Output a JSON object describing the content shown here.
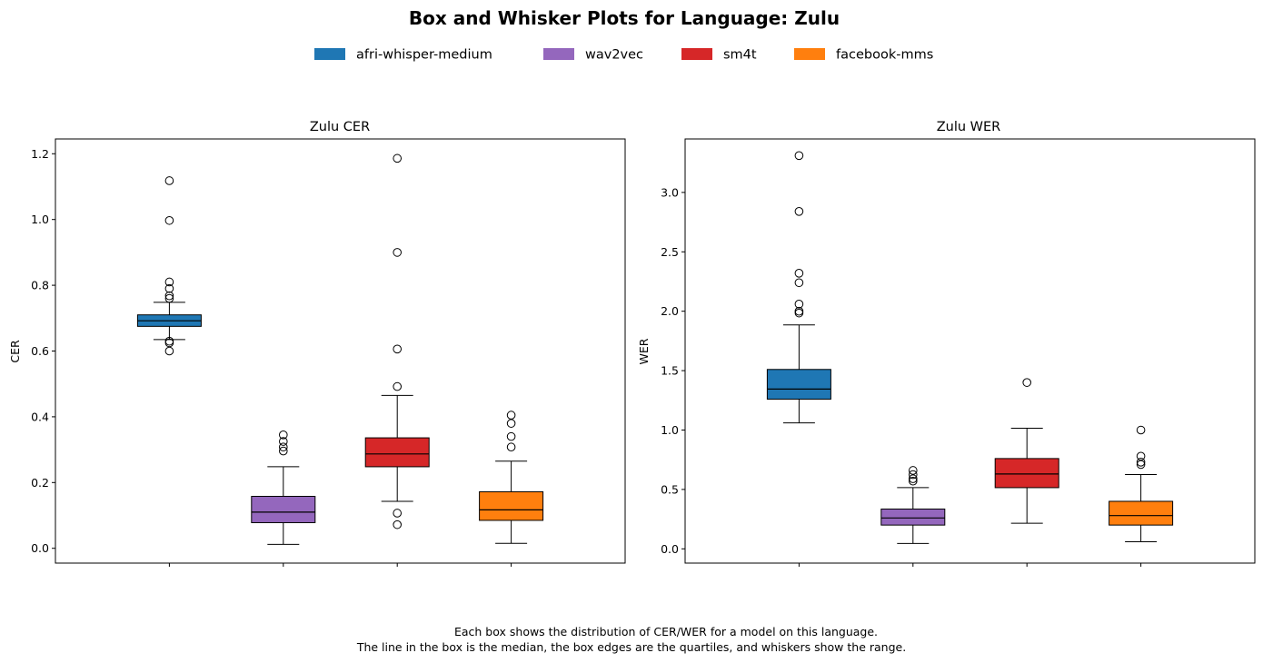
{
  "figure": {
    "suptitle": "Box and Whisker Plots for Language: Zulu",
    "footnote_line1": "Each box shows the distribution of CER/WER for a model on this language.",
    "footnote_line2": "The line in the box is the median, the box edges are the quartiles, and whiskers show the range."
  },
  "legend": {
    "placement": "top-center",
    "items": [
      {
        "label": "afri-whisper-medium",
        "color": "#1f77b4"
      },
      {
        "label": "wav2vec",
        "color": "#9467bd"
      },
      {
        "label": "sm4t",
        "color": "#d62728"
      },
      {
        "label": "facebook-mms",
        "color": "#ff7f0e"
      }
    ]
  },
  "chart_data": [
    {
      "type": "box",
      "title": "Zulu CER",
      "xlabel": "",
      "ylabel": "CER",
      "ylim": [
        -0.045,
        1.245
      ],
      "yticks": [
        0.0,
        0.2,
        0.4,
        0.6,
        0.8,
        1.0,
        1.2
      ],
      "ytick_labels": [
        "0.0",
        "0.2",
        "0.4",
        "0.6",
        "0.8",
        "1.0",
        "1.2"
      ],
      "grid": false,
      "series": [
        {
          "name": "afri-whisper-medium",
          "color": "#1f77b4",
          "whisker_low": 0.635,
          "q1": 0.675,
          "median": 0.692,
          "q3": 0.71,
          "whisker_high": 0.748,
          "outliers": [
            0.6,
            0.625,
            0.63,
            0.76,
            0.768,
            0.79,
            0.81,
            0.997,
            1.118
          ]
        },
        {
          "name": "wav2vec",
          "color": "#9467bd",
          "whisker_low": 0.012,
          "q1": 0.078,
          "median": 0.11,
          "q3": 0.158,
          "whisker_high": 0.248,
          "outliers": [
            0.296,
            0.308,
            0.325,
            0.345
          ]
        },
        {
          "name": "sm4t",
          "color": "#d62728",
          "whisker_low": 0.143,
          "q1": 0.248,
          "median": 0.287,
          "q3": 0.336,
          "whisker_high": 0.465,
          "outliers": [
            0.072,
            0.107,
            0.492,
            0.606,
            0.9,
            1.186
          ]
        },
        {
          "name": "facebook-mms",
          "color": "#ff7f0e",
          "whisker_low": 0.015,
          "q1": 0.085,
          "median": 0.117,
          "q3": 0.172,
          "whisker_high": 0.265,
          "outliers": [
            0.308,
            0.34,
            0.38,
            0.405
          ]
        }
      ]
    },
    {
      "type": "box",
      "title": "Zulu WER",
      "xlabel": "",
      "ylabel": "WER",
      "ylim": [
        -0.12,
        3.45
      ],
      "yticks": [
        0.0,
        0.5,
        1.0,
        1.5,
        2.0,
        2.5,
        3.0
      ],
      "ytick_labels": [
        "0.0",
        "0.5",
        "1.0",
        "1.5",
        "2.0",
        "2.5",
        "3.0"
      ],
      "grid": false,
      "series": [
        {
          "name": "afri-whisper-medium",
          "color": "#1f77b4",
          "whisker_low": 1.06,
          "q1": 1.26,
          "median": 1.345,
          "q3": 1.51,
          "whisker_high": 1.885,
          "outliers": [
            1.985,
            2.0,
            2.06,
            2.24,
            2.32,
            2.84,
            3.31
          ]
        },
        {
          "name": "wav2vec",
          "color": "#9467bd",
          "whisker_low": 0.045,
          "q1": 0.2,
          "median": 0.26,
          "q3": 0.335,
          "whisker_high": 0.515,
          "outliers": [
            0.57,
            0.59,
            0.625,
            0.66
          ]
        },
        {
          "name": "sm4t",
          "color": "#d62728",
          "whisker_low": 0.215,
          "q1": 0.515,
          "median": 0.63,
          "q3": 0.76,
          "whisker_high": 1.015,
          "outliers": [
            1.4
          ]
        },
        {
          "name": "facebook-mms",
          "color": "#ff7f0e",
          "whisker_low": 0.06,
          "q1": 0.2,
          "median": 0.28,
          "q3": 0.4,
          "whisker_high": 0.625,
          "outliers": [
            0.71,
            0.73,
            0.78,
            1.0
          ]
        }
      ]
    }
  ]
}
